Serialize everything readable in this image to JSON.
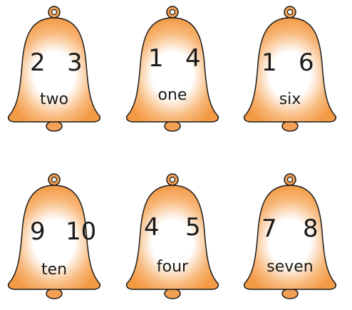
{
  "bells": [
    {
      "left_number": "2",
      "right_number": "3",
      "word": "two"
    },
    {
      "left_number": "1",
      "right_number": "4",
      "word": "one"
    },
    {
      "left_number": "1",
      "right_number": "6",
      "word": "six"
    },
    {
      "left_number": "9",
      "right_number": "10",
      "word": "ten"
    },
    {
      "left_number": "4",
      "right_number": "5",
      "word": "four"
    },
    {
      "left_number": "7",
      "right_number": "8",
      "word": "seven"
    }
  ],
  "colors": {
    "bell_orange": "#F4A055",
    "outline": "#1a1a1a"
  }
}
